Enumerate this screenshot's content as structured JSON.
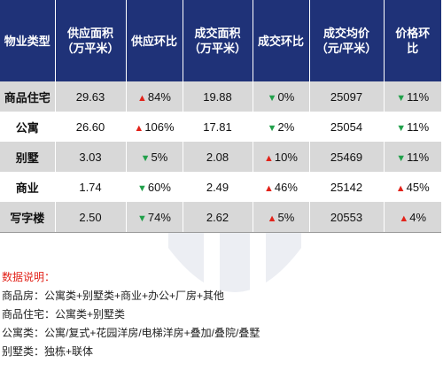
{
  "table": {
    "headers": [
      "物业类型",
      "供应面积\n（万平米）",
      "供应环比",
      "成交面积\n（万平米）",
      "成交环比",
      "成交均价\n（元/平米）",
      "价格环\n比"
    ],
    "rows": [
      {
        "type": "商品住宅",
        "supply_area": "29.63",
        "supply_mom": {
          "dir": "up",
          "value": "84%"
        },
        "deal_area": "19.88",
        "deal_mom": {
          "dir": "down",
          "value": "0%"
        },
        "avg_price": "25097",
        "price_mom": {
          "dir": "down",
          "value": "11%"
        }
      },
      {
        "type": "公寓",
        "supply_area": "26.60",
        "supply_mom": {
          "dir": "up",
          "value": "106%"
        },
        "deal_area": "17.81",
        "deal_mom": {
          "dir": "down",
          "value": "2%"
        },
        "avg_price": "25054",
        "price_mom": {
          "dir": "down",
          "value": "11%"
        }
      },
      {
        "type": "别墅",
        "supply_area": "3.03",
        "supply_mom": {
          "dir": "down",
          "value": "5%"
        },
        "deal_area": "2.08",
        "deal_mom": {
          "dir": "up",
          "value": "10%"
        },
        "avg_price": "25469",
        "price_mom": {
          "dir": "down",
          "value": "11%"
        }
      },
      {
        "type": "商业",
        "supply_area": "1.74",
        "supply_mom": {
          "dir": "down",
          "value": "60%"
        },
        "deal_area": "2.49",
        "deal_mom": {
          "dir": "up",
          "value": "46%"
        },
        "avg_price": "25142",
        "price_mom": {
          "dir": "up",
          "value": "45%"
        }
      },
      {
        "type": "写字楼",
        "supply_area": "2.50",
        "supply_mom": {
          "dir": "down",
          "value": "74%"
        },
        "deal_area": "2.62",
        "deal_mom": {
          "dir": "up",
          "value": "5%"
        },
        "avg_price": "20553",
        "price_mom": {
          "dir": "up",
          "value": "4%"
        }
      }
    ],
    "arrow_up_glyph": "▲",
    "arrow_down_glyph": "▼",
    "colors": {
      "header_bg": "#1f3278",
      "up": "#e2231a",
      "down": "#21a04a",
      "shade": "#d8d8d8"
    }
  },
  "notes": {
    "title": "数据说明：",
    "lines": [
      "商品房：公寓类+别墅类+商业+办公+厂房+其他",
      "商品住宅：公寓类+别墅类",
      "公寓类：公寓/复式+花园洋房/电梯洋房+叠加/叠院/叠墅",
      "别墅类：独栋+联体"
    ]
  }
}
